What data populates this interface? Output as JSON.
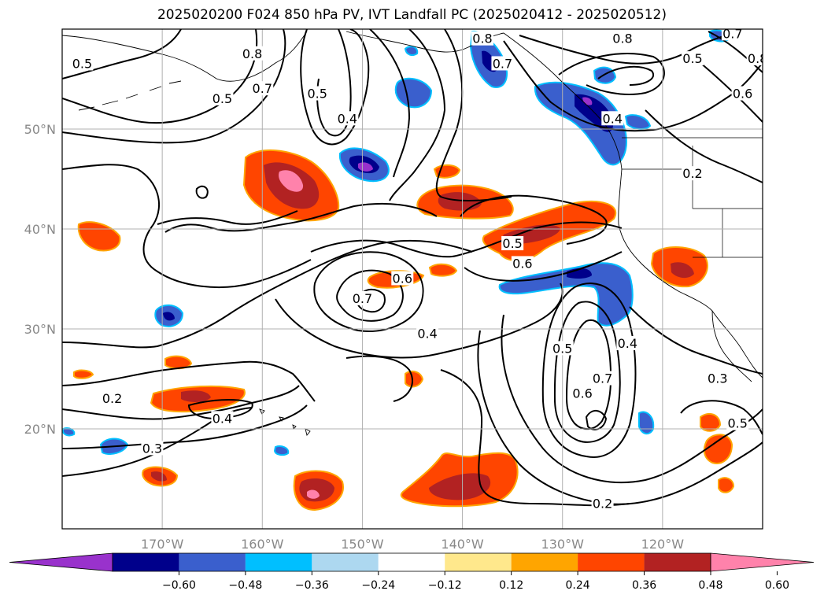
{
  "title": "2025020200 F024 850 hPa PV, IVT Landfall PC (2025020412 - 2025020512)",
  "map": {
    "lon_range": [
      -180,
      -110
    ],
    "lat_range": [
      10,
      60
    ],
    "lat_ticks": [
      {
        "value": 50,
        "label": "50°N"
      },
      {
        "value": 40,
        "label": "40°N"
      },
      {
        "value": 30,
        "label": "30°N"
      },
      {
        "value": 20,
        "label": "20°N"
      }
    ],
    "lon_ticks": [
      {
        "value": -170,
        "label": "170°W"
      },
      {
        "value": -160,
        "label": "160°W"
      },
      {
        "value": -150,
        "label": "150°W"
      },
      {
        "value": -140,
        "label": "140°W"
      },
      {
        "value": -130,
        "label": "130°W"
      },
      {
        "value": -120,
        "label": "120°W"
      }
    ],
    "gridlines": true,
    "grid_color": "#b0b0b0",
    "contour_labels": [
      {
        "text": "0.5",
        "lon": -178,
        "lat": 56.5
      },
      {
        "text": "0.8",
        "lon": -161,
        "lat": 57.5
      },
      {
        "text": "0.7",
        "lon": -160,
        "lat": 54
      },
      {
        "text": "0.5",
        "lon": -164,
        "lat": 53
      },
      {
        "text": "0.5",
        "lon": -154.5,
        "lat": 53.5
      },
      {
        "text": "0.4",
        "lon": -151.5,
        "lat": 51
      },
      {
        "text": "0.8",
        "lon": -138,
        "lat": 59
      },
      {
        "text": "0.7",
        "lon": -136,
        "lat": 56.5
      },
      {
        "text": "0.8",
        "lon": -124,
        "lat": 59
      },
      {
        "text": "0.7",
        "lon": -113,
        "lat": 59.5
      },
      {
        "text": "0.5",
        "lon": -117,
        "lat": 57
      },
      {
        "text": "0.8",
        "lon": -110.5,
        "lat": 57
      },
      {
        "text": "0.6",
        "lon": -112,
        "lat": 53.5
      },
      {
        "text": "0.4",
        "lon": -125,
        "lat": 51
      },
      {
        "text": "0.2",
        "lon": -117,
        "lat": 45.5
      },
      {
        "text": "0.5",
        "lon": -135,
        "lat": 38.5
      },
      {
        "text": "0.6",
        "lon": -134,
        "lat": 36.5
      },
      {
        "text": "0.7",
        "lon": -150,
        "lat": 33
      },
      {
        "text": "0.6",
        "lon": -146,
        "lat": 35
      },
      {
        "text": "0.4",
        "lon": -143.5,
        "lat": 29.5
      },
      {
        "text": "0.5",
        "lon": -130,
        "lat": 28
      },
      {
        "text": "0.6",
        "lon": -128,
        "lat": 23.5
      },
      {
        "text": "0.7",
        "lon": -126,
        "lat": 25
      },
      {
        "text": "0.4",
        "lon": -123.5,
        "lat": 28.5
      },
      {
        "text": "0.3",
        "lon": -114.5,
        "lat": 25
      },
      {
        "text": "0.5",
        "lon": -112.5,
        "lat": 20.5
      },
      {
        "text": "0.2",
        "lon": -175,
        "lat": 23
      },
      {
        "text": "0.4",
        "lon": -164,
        "lat": 21
      },
      {
        "text": "0.3",
        "lon": -171,
        "lat": 18
      },
      {
        "text": "0.2",
        "lon": -126,
        "lat": 12.5
      }
    ]
  },
  "colorbar": {
    "colors": [
      "#9932CC",
      "#00008B",
      "#3A5FCD",
      "#00BFFF",
      "#ADD8F0",
      "#FFFFFF",
      "#FFE88C",
      "#FFA500",
      "#FF4500",
      "#B22222",
      "#FF82AB"
    ],
    "ticks": [
      "−0.60",
      "−0.48",
      "−0.36",
      "−0.24",
      "−0.12",
      "0.12",
      "0.24",
      "0.36",
      "0.48",
      "0.60"
    ]
  }
}
